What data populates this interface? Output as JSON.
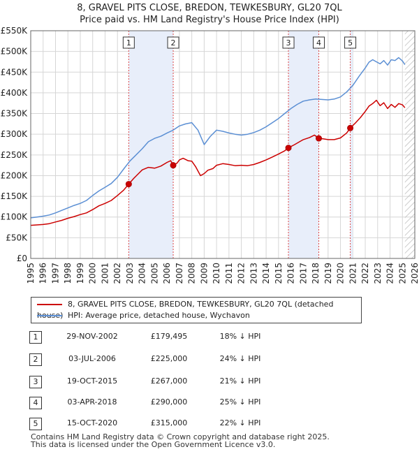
{
  "chart_data": {
    "type": "line",
    "title": "8, GRAVEL PITS CLOSE, BREDON, TEWKESBURY, GL20 7QL",
    "subtitle": "Price paid vs. HM Land Registry's House Price Index (HPI)",
    "xlim": [
      1995,
      2026
    ],
    "ylim": [
      0,
      550000
    ],
    "x_ticks": [
      1995,
      1996,
      1997,
      1998,
      1999,
      2000,
      2001,
      2002,
      2003,
      2004,
      2005,
      2006,
      2007,
      2008,
      2009,
      2010,
      2011,
      2012,
      2013,
      2014,
      2015,
      2016,
      2017,
      2018,
      2019,
      2020,
      2021,
      2022,
      2023,
      2024,
      2025,
      2026
    ],
    "y_ticks": [
      {
        "value": 0,
        "label": "£0"
      },
      {
        "value": 50000,
        "label": "£50K"
      },
      {
        "value": 100000,
        "label": "£100K"
      },
      {
        "value": 150000,
        "label": "£150K"
      },
      {
        "value": 200000,
        "label": "£200K"
      },
      {
        "value": 250000,
        "label": "£250K"
      },
      {
        "value": 300000,
        "label": "£300K"
      },
      {
        "value": 350000,
        "label": "£350K"
      },
      {
        "value": 400000,
        "label": "£400K"
      },
      {
        "value": 450000,
        "label": "£450K"
      },
      {
        "value": 500000,
        "label": "£500K"
      },
      {
        "value": 550000,
        "label": "£550K"
      }
    ],
    "grid": true,
    "series": [
      {
        "name": "8, GRAVEL PITS CLOSE, BREDON, TEWKESBURY, GL20 7QL (detached house)",
        "color": "#cc0000",
        "x": [
          1995,
          1995.5,
          1996,
          1996.5,
          1997,
          1997.5,
          1998,
          1998.5,
          1999,
          1999.5,
          2000,
          2000.5,
          2001,
          2001.5,
          2002,
          2002.5,
          2002.91,
          2003.3,
          2003.7,
          2004,
          2004.5,
          2005,
          2005.5,
          2006,
          2006.3,
          2006.5,
          2006.8,
          2007,
          2007.3,
          2007.7,
          2008,
          2008.3,
          2008.7,
          2009,
          2009.3,
          2009.7,
          2010,
          2010.5,
          2011,
          2011.5,
          2012,
          2012.5,
          2013,
          2013.5,
          2014,
          2014.5,
          2015,
          2015.5,
          2015.8,
          2016.3,
          2016.7,
          2017,
          2017.5,
          2017.9,
          2018.25,
          2018.6,
          2019,
          2019.5,
          2020,
          2020.5,
          2020.79,
          2021.2,
          2021.6,
          2022,
          2022.3,
          2022.6,
          2022.9,
          2023.2,
          2023.5,
          2023.8,
          2024.1,
          2024.4,
          2024.7,
          2025,
          2025.2
        ],
        "values": [
          80000,
          81000,
          82000,
          84000,
          88000,
          92000,
          97000,
          101000,
          106000,
          110000,
          118000,
          127000,
          133000,
          140000,
          152000,
          165000,
          179495,
          193000,
          205000,
          214000,
          220000,
          218000,
          223000,
          232000,
          236000,
          225000,
          230000,
          238000,
          242000,
          236000,
          235000,
          222000,
          200000,
          205000,
          213000,
          217000,
          225000,
          229000,
          227000,
          224000,
          225000,
          224000,
          227000,
          232000,
          238000,
          245000,
          252000,
          260000,
          267000,
          275000,
          282000,
          287000,
          292000,
          298000,
          290000,
          289000,
          287000,
          287000,
          291000,
          303000,
          315000,
          327000,
          340000,
          355000,
          368000,
          374000,
          382000,
          369000,
          376000,
          362000,
          372000,
          365000,
          374000,
          371000,
          364000
        ]
      },
      {
        "name": "HPI: Average price, detached house, Wychavon",
        "color": "#5b8fd4",
        "x": [
          1995,
          1995.5,
          1996,
          1996.5,
          1997,
          1997.5,
          1998,
          1998.5,
          1999,
          1999.5,
          2000,
          2000.5,
          2001,
          2001.5,
          2002,
          2002.5,
          2003,
          2003.5,
          2004,
          2004.5,
          2005,
          2005.5,
          2006,
          2006.5,
          2007,
          2007.5,
          2008,
          2008.5,
          2009,
          2009.5,
          2010,
          2010.5,
          2011,
          2011.5,
          2012,
          2012.5,
          2013,
          2013.5,
          2014,
          2014.5,
          2015,
          2015.5,
          2016,
          2016.5,
          2017,
          2017.5,
          2018,
          2018.5,
          2019,
          2019.5,
          2020,
          2020.5,
          2021,
          2021.5,
          2022,
          2022.3,
          2022.6,
          2022.9,
          2023.2,
          2023.5,
          2023.8,
          2024.1,
          2024.4,
          2024.7,
          2025,
          2025.2
        ],
        "values": [
          98000,
          100000,
          102000,
          105000,
          110000,
          116000,
          122000,
          128000,
          133000,
          140000,
          152000,
          163000,
          172000,
          181000,
          196000,
          216000,
          235000,
          250000,
          265000,
          282000,
          290000,
          295000,
          303000,
          310000,
          320000,
          325000,
          328000,
          310000,
          275000,
          295000,
          310000,
          307000,
          303000,
          300000,
          298000,
          300000,
          304000,
          310000,
          318000,
          328000,
          338000,
          350000,
          362000,
          372000,
          380000,
          383000,
          385000,
          384000,
          383000,
          385000,
          390000,
          402000,
          418000,
          440000,
          460000,
          474000,
          480000,
          475000,
          470000,
          478000,
          467000,
          480000,
          478000,
          485000,
          477000,
          468000
        ]
      }
    ],
    "sales": [
      {
        "label": "1",
        "x": 2002.91,
        "value": 179495
      },
      {
        "label": "2",
        "x": 2006.5,
        "value": 225000
      },
      {
        "label": "3",
        "x": 2015.8,
        "value": 267000
      },
      {
        "label": "4",
        "x": 2018.25,
        "value": 290000
      },
      {
        "label": "5",
        "x": 2020.79,
        "value": 315000
      }
    ],
    "highlight_periods": [
      [
        2002.91,
        2006.5
      ],
      [
        2015.8,
        2018.25
      ],
      [
        2020.79,
        2021.0
      ]
    ],
    "future_hatch_from": 2025.2
  },
  "legend": {
    "items": [
      {
        "label": "8, GRAVEL PITS CLOSE, BREDON, TEWKESBURY, GL20 7QL (detached house)",
        "color": "#cc0000"
      },
      {
        "label": "HPI: Average price, detached house, Wychavon",
        "color": "#5b8fd4"
      }
    ]
  },
  "transactions": [
    {
      "num": "1",
      "date": "29-NOV-2002",
      "price": "£179,495",
      "hpi": "18% ↓ HPI"
    },
    {
      "num": "2",
      "date": "03-JUL-2006",
      "price": "£225,000",
      "hpi": "24% ↓ HPI"
    },
    {
      "num": "3",
      "date": "19-OCT-2015",
      "price": "£267,000",
      "hpi": "21% ↓ HPI"
    },
    {
      "num": "4",
      "date": "03-APR-2018",
      "price": "£290,000",
      "hpi": "25% ↓ HPI"
    },
    {
      "num": "5",
      "date": "15-OCT-2020",
      "price": "£315,000",
      "hpi": "22% ↓ HPI"
    }
  ],
  "footer": {
    "line1": "Contains HM Land Registry data © Crown copyright and database right 2025.",
    "line2": "This data is licensed under the Open Government Licence v3.0."
  }
}
